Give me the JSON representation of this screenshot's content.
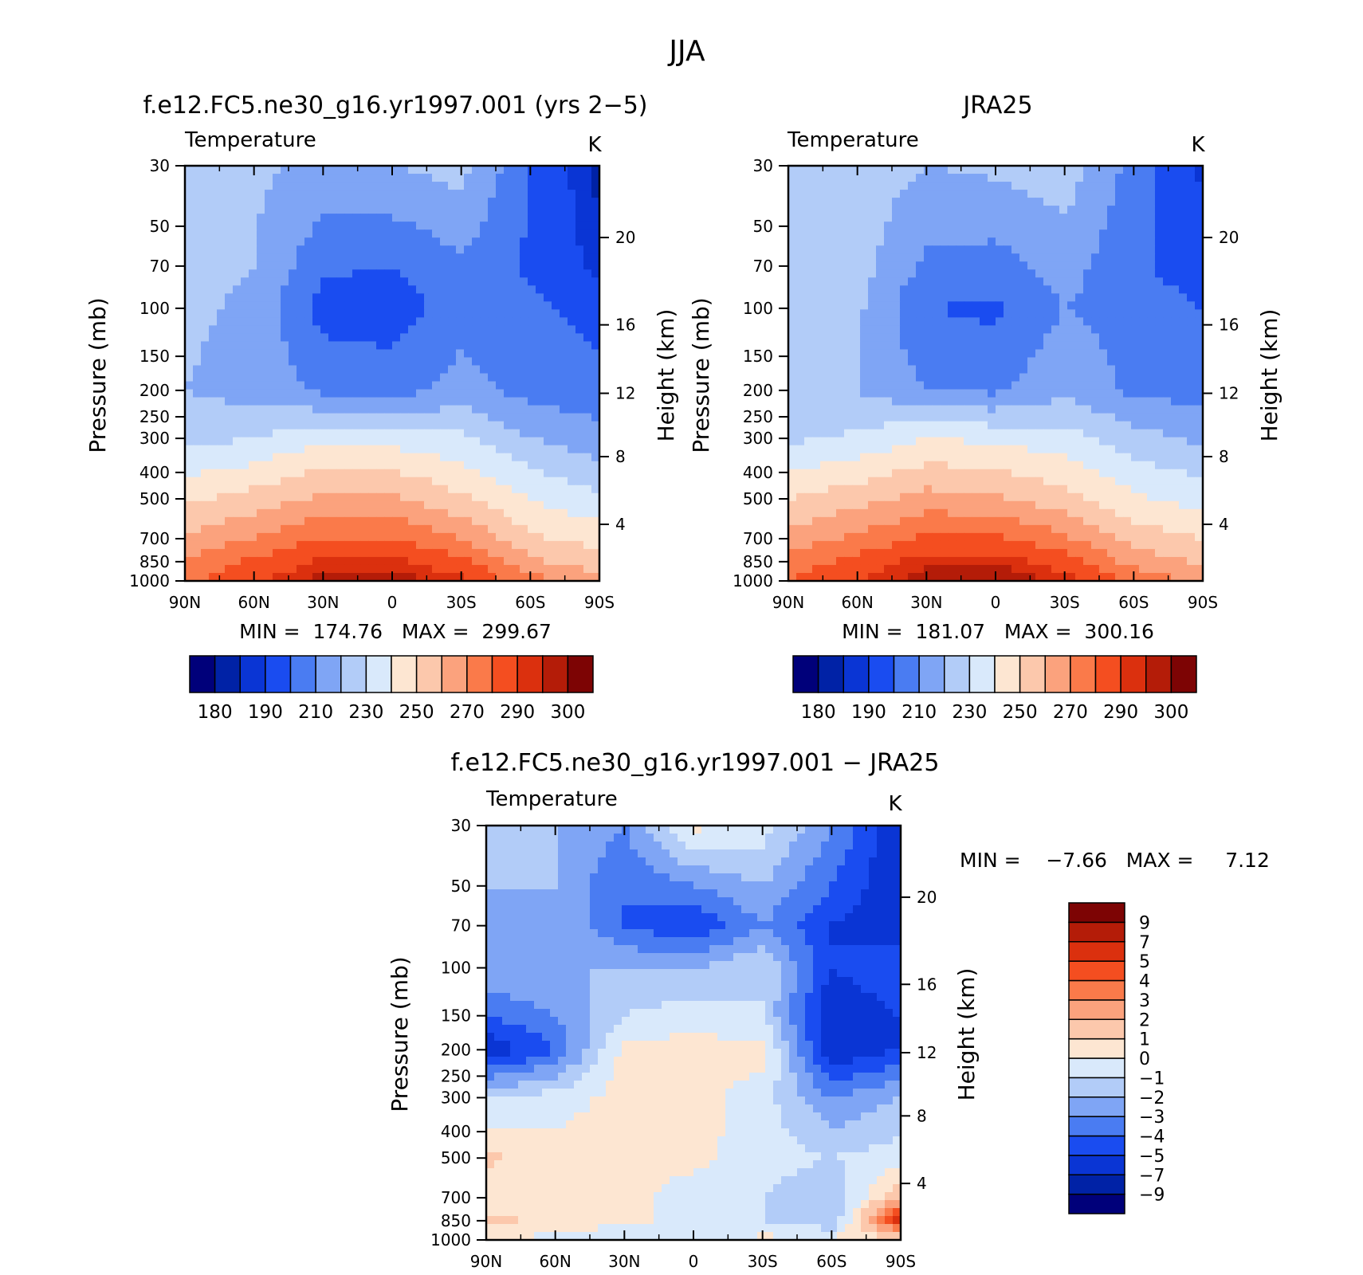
{
  "page_title": "JJA",
  "colors": {
    "abs_scale": [
      "#00007a",
      "#0022a6",
      "#0a35d4",
      "#1a4cf0",
      "#4a7cf2",
      "#7fa5f5",
      "#b2ccf8",
      "#d9e9fb",
      "#fde6d2",
      "#fcc8ac",
      "#fba27d",
      "#fa7a4a",
      "#f44e20",
      "#db300e",
      "#b41c08",
      "#7d0404"
    ],
    "diff_scale": [
      "#00007a",
      "#0022a6",
      "#0a35d4",
      "#1a4cf0",
      "#4a7cf2",
      "#7fa5f5",
      "#b2ccf8",
      "#d9e9fb",
      "#fde6d2",
      "#fcc8ac",
      "#fba27d",
      "#fa7a4a",
      "#f44e20",
      "#db300e",
      "#b41c08",
      "#7d0404"
    ]
  },
  "chart_data": [
    {
      "type": "heatmap",
      "title": "f.e12.FC5.ne30_g16.yr1997.001 (yrs 2−5)",
      "left_label": "Temperature",
      "units_label": "K",
      "ylabel": "Pressure (mb)",
      "y2label": "Height (km)",
      "x_ticks": [
        "90N",
        "60N",
        "30N",
        "0",
        "30S",
        "60S",
        "90S"
      ],
      "xlim": [
        90,
        -90
      ],
      "y_ticks": [
        30,
        50,
        70,
        100,
        150,
        200,
        250,
        300,
        400,
        500,
        700,
        850,
        1000
      ],
      "ylim": [
        1000,
        30
      ],
      "y_scale": "log",
      "y2_ticks": [
        4,
        8,
        12,
        16,
        20
      ],
      "min_max_text": "MIN =  174.76   MAX =  299.67",
      "min": 174.76,
      "max": 299.67,
      "colorbar_labels": [
        "180",
        "190",
        "210",
        "230",
        "250",
        "270",
        "290",
        "300"
      ],
      "colorbar_levels": [
        180,
        185,
        190,
        200,
        210,
        220,
        230,
        240,
        250,
        260,
        270,
        280,
        290,
        295,
        300
      ],
      "field": {
        "lat": [
          90,
          60,
          30,
          0,
          -30,
          -60,
          -90
        ],
        "p": [
          30,
          70,
          100,
          200,
          300,
          500,
          700,
          850,
          1000
        ],
        "values": [
          [
            226,
            222,
            218,
            220,
            224,
            200,
            182
          ],
          [
            224,
            220,
            202,
            200,
            208,
            198,
            188
          ],
          [
            222,
            218,
            196,
            194,
            206,
            202,
            196
          ],
          [
            220,
            216,
            208,
            206,
            214,
            206,
            204
          ],
          [
            226,
            230,
            238,
            236,
            232,
            220,
            214
          ],
          [
            248,
            254,
            262,
            262,
            252,
            240,
            232
          ],
          [
            262,
            270,
            280,
            280,
            270,
            252,
            246
          ],
          [
            272,
            282,
            292,
            292,
            284,
            262,
            254
          ],
          [
            278,
            288,
            298,
            299,
            292,
            274,
            264
          ]
        ]
      }
    },
    {
      "type": "heatmap",
      "title": "JRA25",
      "left_label": "Temperature",
      "units_label": "K",
      "ylabel": "Pressure (mb)",
      "y2label": "Height (km)",
      "x_ticks": [
        "90N",
        "60N",
        "30N",
        "0",
        "30S",
        "60S",
        "90S"
      ],
      "xlim": [
        90,
        -90
      ],
      "y_ticks": [
        30,
        50,
        70,
        100,
        150,
        200,
        250,
        300,
        400,
        500,
        700,
        850,
        1000
      ],
      "ylim": [
        1000,
        30
      ],
      "y_scale": "log",
      "y2_ticks": [
        4,
        8,
        12,
        16,
        20
      ],
      "min_max_text": "MIN =  181.07   MAX =  300.16",
      "min": 181.07,
      "max": 300.16,
      "colorbar_labels": [
        "180",
        "190",
        "210",
        "230",
        "250",
        "270",
        "290",
        "300"
      ],
      "colorbar_levels": [
        180,
        185,
        190,
        200,
        210,
        220,
        230,
        240,
        250,
        260,
        270,
        280,
        290,
        295,
        300
      ],
      "field": {
        "lat": [
          90,
          60,
          30,
          0,
          -30,
          -60,
          -90
        ],
        "p": [
          30,
          70,
          100,
          200,
          300,
          500,
          700,
          850,
          1000
        ],
        "values": [
          [
            228,
            226,
            220,
            222,
            226,
            206,
            188
          ],
          [
            230,
            224,
            208,
            206,
            214,
            202,
            194
          ],
          [
            228,
            222,
            200,
            198,
            210,
            206,
            200
          ],
          [
            226,
            220,
            210,
            208,
            218,
            208,
            206
          ],
          [
            228,
            232,
            240,
            238,
            234,
            224,
            218
          ],
          [
            250,
            256,
            264,
            262,
            254,
            242,
            236
          ],
          [
            264,
            272,
            282,
            282,
            272,
            256,
            250
          ],
          [
            274,
            284,
            294,
            294,
            286,
            266,
            258
          ],
          [
            280,
            290,
            298,
            300,
            294,
            278,
            268
          ]
        ]
      }
    },
    {
      "type": "heatmap",
      "title": "f.e12.FC5.ne30_g16.yr1997.001 − JRA25",
      "left_label": "Temperature",
      "units_label": "K",
      "ylabel": "Pressure (mb)",
      "y2label": "Height (km)",
      "x_ticks": [
        "90N",
        "60N",
        "30N",
        "0",
        "30S",
        "60S",
        "90S"
      ],
      "xlim": [
        90,
        -90
      ],
      "y_ticks": [
        30,
        50,
        70,
        100,
        150,
        200,
        250,
        300,
        400,
        500,
        700,
        850,
        1000
      ],
      "ylim": [
        1000,
        30
      ],
      "y_scale": "log",
      "y2_ticks": [
        4,
        8,
        12,
        16,
        20
      ],
      "min_max_text": "MIN =    −7.66   MAX =     7.12",
      "min": -7.66,
      "max": 7.12,
      "colorbar_labels": [
        "−9",
        "−7",
        "−5",
        "−4",
        "−3",
        "−2",
        "−1",
        "0",
        "1",
        "2",
        "3",
        "4",
        "5",
        "7",
        "9"
      ],
      "colorbar_levels": [
        -9,
        -7,
        -5,
        -4,
        -3,
        -2,
        -1,
        0,
        1,
        2,
        3,
        4,
        5,
        7,
        9
      ],
      "field": {
        "lat": [
          90,
          60,
          30,
          0,
          -30,
          -60,
          -90
        ],
        "p": [
          30,
          50,
          70,
          100,
          150,
          200,
          300,
          500,
          700,
          850,
          1000
        ],
        "values": [
          [
            -1,
            -2,
            -3,
            0.3,
            -0.5,
            -3,
            -6
          ],
          [
            -2,
            -2,
            -4,
            -3,
            -2,
            -4,
            -6
          ],
          [
            -3,
            -2,
            -4,
            -5,
            -3,
            -5,
            -6
          ],
          [
            -2,
            -2,
            -2,
            -2,
            -1,
            -5,
            -4
          ],
          [
            -4,
            -3,
            -1,
            -0.5,
            -1,
            -6,
            -5
          ],
          [
            -6,
            -4,
            0.4,
            0.4,
            0.4,
            -6,
            -5
          ],
          [
            -1,
            -0.5,
            0.4,
            0.4,
            -0.5,
            -3,
            -2
          ],
          [
            1.2,
            0.5,
            0.4,
            0.3,
            -0.5,
            -1,
            -0.5
          ],
          [
            0.5,
            0.3,
            0.3,
            -0.5,
            -1,
            -2,
            2
          ],
          [
            1.2,
            0.8,
            0.3,
            -0.5,
            -1,
            -2,
            6
          ],
          [
            0.3,
            -0.5,
            -1,
            -0.2,
            0.3,
            0.3,
            0.3
          ]
        ]
      }
    }
  ]
}
